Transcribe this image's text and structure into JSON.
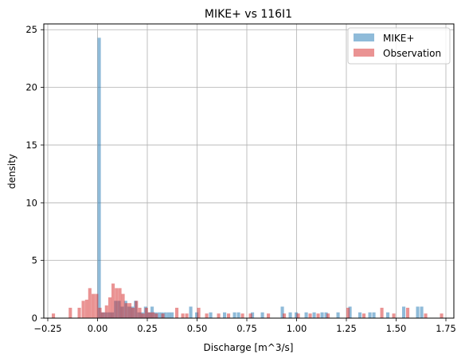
{
  "chart_data": {
    "type": "histogram",
    "title": "MIKE+ vs 116I1",
    "xlabel": "Discharge [m^3/s]",
    "ylabel": "density",
    "xlim": [
      -0.27,
      1.79
    ],
    "ylim": [
      0,
      25.5
    ],
    "grid": true,
    "legend_position": "top-right",
    "x_ticks": [
      -0.25,
      0.0,
      0.25,
      0.5,
      0.75,
      1.0,
      1.25,
      1.5,
      1.75
    ],
    "x_tick_labels": [
      "−0.25",
      "0.00",
      "0.25",
      "0.50",
      "0.75",
      "1.00",
      "1.25",
      "1.50",
      "1.75"
    ],
    "y_ticks": [
      0,
      5,
      10,
      15,
      20,
      25
    ],
    "y_tick_labels": [
      "0",
      "5",
      "10",
      "15",
      "20",
      "25"
    ],
    "series": [
      {
        "name": "MIKE+",
        "color": "#1f77b4",
        "opacity": 0.5,
        "bin_width": 0.0165,
        "bins": [
          [
            0.0,
            24.3
          ],
          [
            0.0165,
            0.5
          ],
          [
            0.033,
            0.5
          ],
          [
            0.05,
            0.5
          ],
          [
            0.066,
            0.5
          ],
          [
            0.083,
            1.5
          ],
          [
            0.1,
            1.5
          ],
          [
            0.116,
            1.0
          ],
          [
            0.133,
            1.5
          ],
          [
            0.15,
            1.0
          ],
          [
            0.166,
            1.0
          ],
          [
            0.183,
            1.5
          ],
          [
            0.2,
            0.5
          ],
          [
            0.216,
            0.5
          ],
          [
            0.233,
            1.0
          ],
          [
            0.25,
            0.5
          ],
          [
            0.266,
            1.0
          ],
          [
            0.283,
            0.5
          ],
          [
            0.3,
            0.5
          ],
          [
            0.316,
            0.5
          ],
          [
            0.333,
            0.5
          ],
          [
            0.35,
            0.5
          ],
          [
            0.366,
            0.5
          ],
          [
            0.46,
            1.0
          ],
          [
            0.49,
            0.5
          ],
          [
            0.56,
            0.5
          ],
          [
            0.63,
            0.5
          ],
          [
            0.68,
            0.5
          ],
          [
            0.7,
            0.5
          ],
          [
            0.77,
            0.5
          ],
          [
            0.82,
            0.5
          ],
          [
            0.92,
            1.0
          ],
          [
            0.96,
            0.5
          ],
          [
            0.99,
            0.5
          ],
          [
            1.04,
            0.5
          ],
          [
            1.08,
            0.5
          ],
          [
            1.12,
            0.5
          ],
          [
            1.14,
            0.5
          ],
          [
            1.2,
            0.5
          ],
          [
            1.26,
            1.0
          ],
          [
            1.31,
            0.5
          ],
          [
            1.36,
            0.5
          ],
          [
            1.38,
            0.5
          ],
          [
            1.45,
            0.5
          ],
          [
            1.53,
            1.0
          ],
          [
            1.6,
            1.0
          ],
          [
            1.62,
            1.0
          ]
        ]
      },
      {
        "name": "Observation",
        "color": "#d62728",
        "opacity": 0.5,
        "bin_width": 0.0165,
        "bins": [
          [
            -0.23,
            0.4
          ],
          [
            -0.145,
            0.9
          ],
          [
            -0.1,
            0.9
          ],
          [
            -0.08,
            1.5
          ],
          [
            -0.063,
            1.6
          ],
          [
            -0.047,
            2.6
          ],
          [
            -0.03,
            2.1
          ],
          [
            -0.013,
            2.1
          ],
          [
            0.004,
            0.9
          ],
          [
            0.02,
            0.5
          ],
          [
            0.037,
            1.1
          ],
          [
            0.054,
            1.8
          ],
          [
            0.07,
            3.0
          ],
          [
            0.087,
            2.6
          ],
          [
            0.104,
            2.6
          ],
          [
            0.12,
            2.1
          ],
          [
            0.137,
            1.3
          ],
          [
            0.154,
            1.3
          ],
          [
            0.17,
            0.9
          ],
          [
            0.187,
            1.5
          ],
          [
            0.204,
            0.9
          ],
          [
            0.22,
            0.4
          ],
          [
            0.237,
            0.9
          ],
          [
            0.254,
            0.5
          ],
          [
            0.27,
            0.5
          ],
          [
            0.287,
            0.4
          ],
          [
            0.32,
            0.4
          ],
          [
            0.39,
            0.9
          ],
          [
            0.42,
            0.4
          ],
          [
            0.44,
            0.4
          ],
          [
            0.5,
            0.9
          ],
          [
            0.54,
            0.4
          ],
          [
            0.6,
            0.4
          ],
          [
            0.65,
            0.4
          ],
          [
            0.72,
            0.4
          ],
          [
            0.76,
            0.4
          ],
          [
            0.85,
            0.4
          ],
          [
            0.93,
            0.4
          ],
          [
            1.0,
            0.4
          ],
          [
            1.06,
            0.4
          ],
          [
            1.1,
            0.4
          ],
          [
            1.15,
            0.4
          ],
          [
            1.25,
            0.9
          ],
          [
            1.33,
            0.4
          ],
          [
            1.42,
            0.9
          ],
          [
            1.48,
            0.4
          ],
          [
            1.55,
            0.9
          ],
          [
            1.64,
            0.4
          ],
          [
            1.72,
            0.4
          ]
        ]
      }
    ]
  }
}
